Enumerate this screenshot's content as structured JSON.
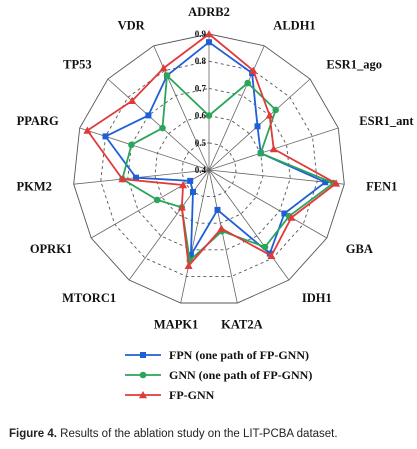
{
  "chart_data": {
    "type": "radar",
    "categories": [
      "ADRB2",
      "ALDH1",
      "ESR1_ago",
      "ESR1_ant",
      "FEN1",
      "GBA",
      "IDH1",
      "KAT2A",
      "MAPK1",
      "MTORC1",
      "OPRK1",
      "PKM2",
      "PPARG",
      "TP53",
      "VDR"
    ],
    "rlim": [
      0.4,
      0.9
    ],
    "ticks": [
      "0.4",
      "0.5",
      "0.6",
      "0.7",
      "0.8",
      "0.9"
    ],
    "grid": true,
    "legend_position": "bottom",
    "series": [
      {
        "name": "FPN  (one path of FP-GNN)",
        "color": "#1f5fd6",
        "marker": "square",
        "values": [
          0.87,
          0.79,
          0.64,
          0.6,
          0.83,
          0.72,
          0.78,
          0.55,
          0.72,
          0.5,
          0.48,
          0.67,
          0.8,
          0.7,
          0.78
        ]
      },
      {
        "name": "GNN (one path of FP-GNN)",
        "color": "#2aa55a",
        "marker": "circle",
        "values": [
          0.6,
          0.75,
          0.73,
          0.6,
          0.86,
          0.74,
          0.75,
          0.63,
          0.74,
          0.57,
          0.62,
          0.72,
          0.7,
          0.63,
          0.78
        ]
      },
      {
        "name": "FP-GNN",
        "color": "#e03a3a",
        "marker": "triangle",
        "values": [
          0.9,
          0.8,
          0.7,
          0.65,
          0.87,
          0.75,
          0.79,
          0.62,
          0.76,
          0.57,
          0.51,
          0.72,
          0.87,
          0.78,
          0.81
        ]
      }
    ]
  },
  "caption": {
    "label": "Figure 4.",
    "text": " Results of the ablation study on the LIT-PCBA dataset."
  }
}
